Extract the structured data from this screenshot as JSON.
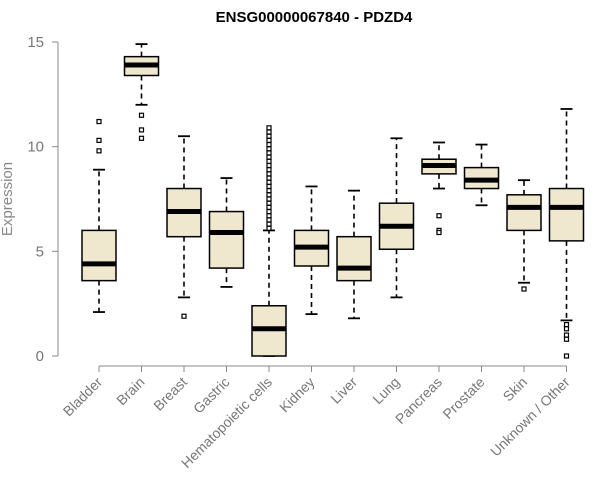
{
  "chart_data": {
    "type": "box",
    "title": "ENSG00000067840 - PDZD4",
    "xlabel": "",
    "ylabel": "Expression",
    "ylim": [
      0,
      15
    ],
    "yticks": [
      0,
      5,
      10,
      15
    ],
    "categories": [
      "Bladder",
      "Brain",
      "Breast",
      "Gastric",
      "Hematopoietic cells",
      "Kidney",
      "Liver",
      "Lung",
      "Pancreas",
      "Prostate",
      "Skin",
      "Unknown / Other"
    ],
    "box_fill": "#efe8cf",
    "series": [
      {
        "name": "Bladder",
        "whisker_low": 2.1,
        "q1": 3.6,
        "median": 4.4,
        "q3": 6.0,
        "whisker_high": 8.9,
        "outliers": [
          9.8,
          10.3,
          11.2
        ]
      },
      {
        "name": "Brain",
        "whisker_low": 12.0,
        "q1": 13.4,
        "median": 13.9,
        "q3": 14.3,
        "whisker_high": 14.9,
        "outliers": [
          10.4,
          10.8,
          11.5
        ]
      },
      {
        "name": "Breast",
        "whisker_low": 2.8,
        "q1": 5.7,
        "median": 6.9,
        "q3": 8.0,
        "whisker_high": 10.5,
        "outliers": [
          1.9
        ]
      },
      {
        "name": "Gastric",
        "whisker_low": 3.3,
        "q1": 4.2,
        "median": 5.9,
        "q3": 6.9,
        "whisker_high": 8.5,
        "outliers": []
      },
      {
        "name": "Hematopoietic cells",
        "whisker_low": 0.0,
        "q1": 0.0,
        "median": 1.3,
        "q3": 2.4,
        "whisker_high": 6.0,
        "outliers": [
          6.1,
          6.3,
          6.5,
          6.7,
          6.9,
          7.1,
          7.3,
          7.5,
          7.7,
          7.9,
          8.1,
          8.3,
          8.5,
          8.7,
          8.9,
          9.1,
          9.3,
          9.5,
          9.7,
          9.9,
          10.1,
          10.3,
          10.5,
          10.7,
          10.9
        ]
      },
      {
        "name": "Kidney",
        "whisker_low": 2.0,
        "q1": 4.3,
        "median": 5.2,
        "q3": 6.0,
        "whisker_high": 8.1,
        "outliers": []
      },
      {
        "name": "Liver",
        "whisker_low": 1.8,
        "q1": 3.6,
        "median": 4.2,
        "q3": 5.7,
        "whisker_high": 7.9,
        "outliers": []
      },
      {
        "name": "Lung",
        "whisker_low": 2.8,
        "q1": 5.1,
        "median": 6.2,
        "q3": 7.3,
        "whisker_high": 10.4,
        "outliers": []
      },
      {
        "name": "Pancreas",
        "whisker_low": 8.0,
        "q1": 8.7,
        "median": 9.1,
        "q3": 9.4,
        "whisker_high": 10.2,
        "outliers": [
          6.7,
          6.0,
          5.9
        ]
      },
      {
        "name": "Prostate",
        "whisker_low": 7.2,
        "q1": 8.0,
        "median": 8.4,
        "q3": 9.0,
        "whisker_high": 10.1,
        "outliers": []
      },
      {
        "name": "Skin",
        "whisker_low": 3.5,
        "q1": 6.0,
        "median": 7.1,
        "q3": 7.7,
        "whisker_high": 8.4,
        "outliers": [
          3.2
        ]
      },
      {
        "name": "Unknown / Other",
        "whisker_low": 1.7,
        "q1": 5.5,
        "median": 7.1,
        "q3": 8.0,
        "whisker_high": 11.8,
        "outliers": [
          1.5,
          1.3,
          1.0,
          0.8,
          0.0
        ]
      }
    ]
  }
}
